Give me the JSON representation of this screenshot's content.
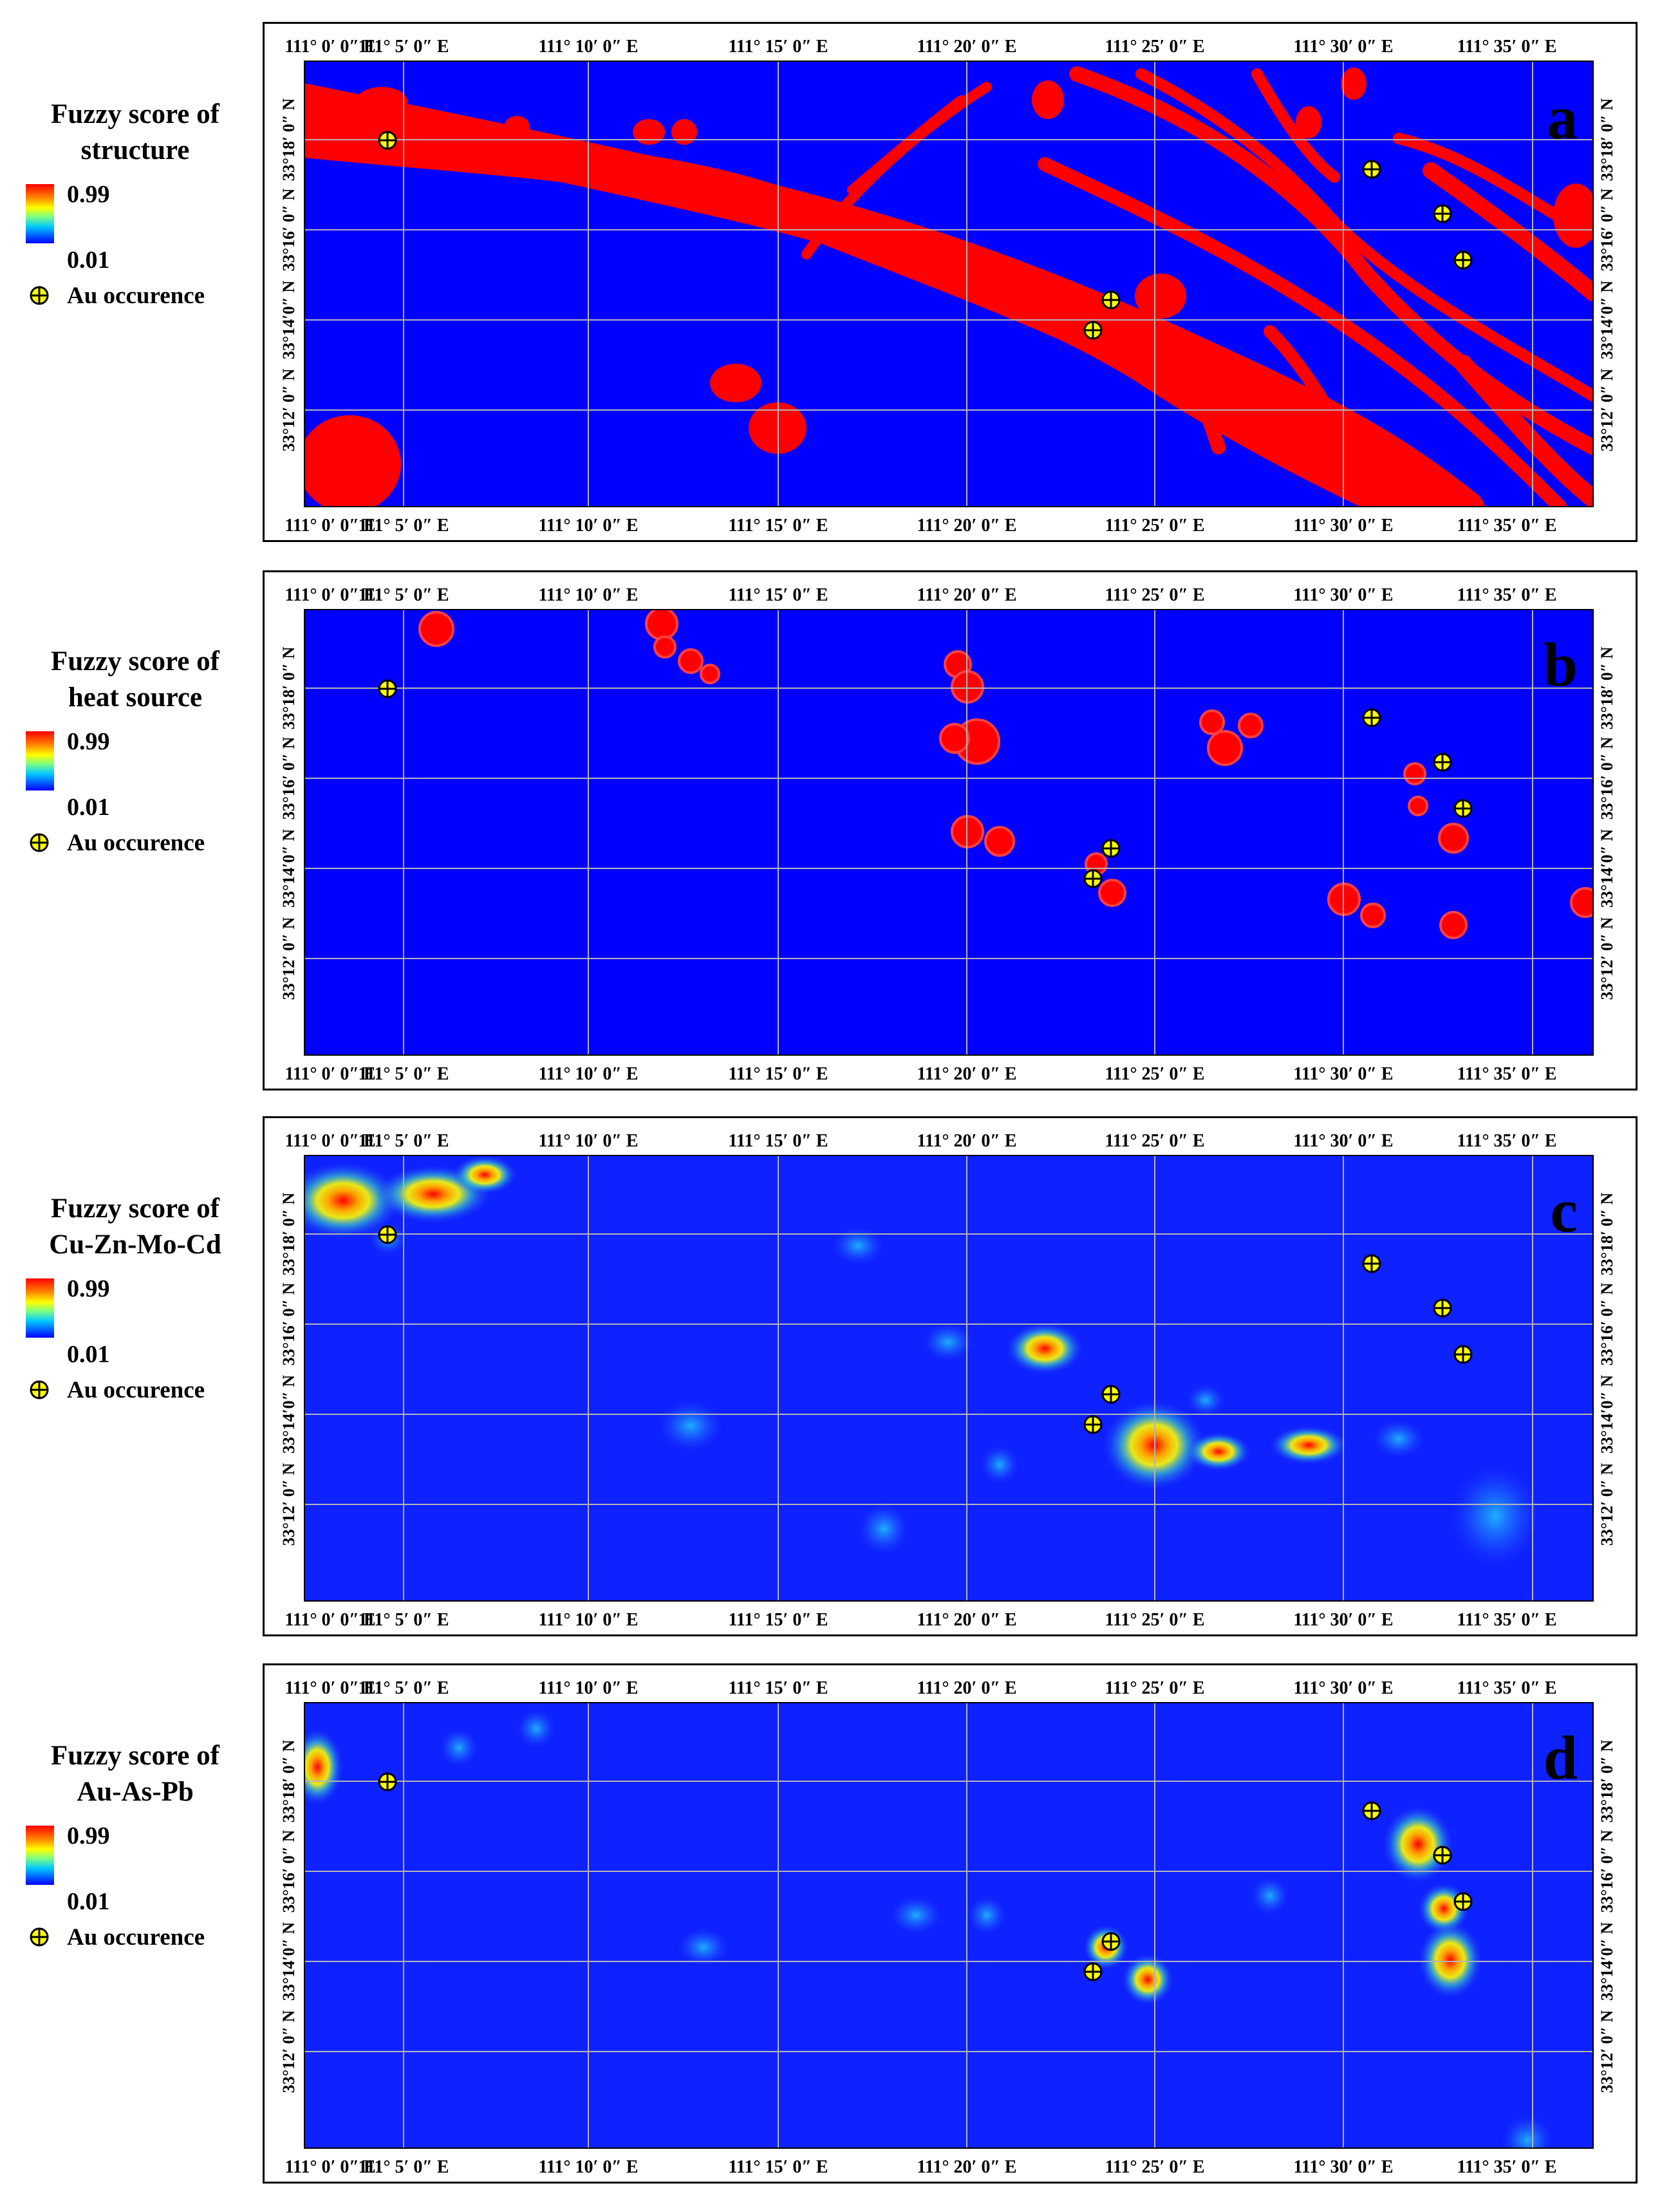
{
  "legend_common": {
    "max_label": "0.99",
    "min_label": "0.01",
    "occurrence_label": "Au occurence"
  },
  "axes": {
    "lon_labels": [
      "111° 0′ 0″ E",
      "111° 5′ 0″ E",
      "111° 10′ 0″ E",
      "111° 15′ 0″ E",
      "111° 20′ 0″ E",
      "111° 25′ 0″ E",
      "111° 30′ 0″ E",
      "111° 35′ 0″ E"
    ],
    "lat_labels_left": [
      "33°18′ 0″ N",
      "33°16′ 0″ N",
      "33°14′0″ N",
      "33°12′ 0″ N"
    ],
    "lat_labels_right": [
      "33°18′ 0″ N",
      "33°16′ 0″ N",
      "33°14′0″ N",
      "33°12′ 0″ N"
    ]
  },
  "colors": {
    "background_blue": "#0000ff",
    "high_red": "#ff0000",
    "marker_fill": "#ffff00",
    "grid": "#b4b4b4"
  },
  "panels": [
    {
      "letter": "a",
      "legend_title_line1": "Fuzzy score of",
      "legend_title_line2": "structure"
    },
    {
      "letter": "b",
      "legend_title_line1": "Fuzzy score of",
      "legend_title_line2": "heat source"
    },
    {
      "letter": "c",
      "legend_title_line1": "Fuzzy score of",
      "legend_title_line2": "Cu-Zn-Mo-Cd"
    },
    {
      "letter": "d",
      "legend_title_line1": "Fuzzy score of",
      "legend_title_line2": "Au-As-Pb"
    }
  ]
}
